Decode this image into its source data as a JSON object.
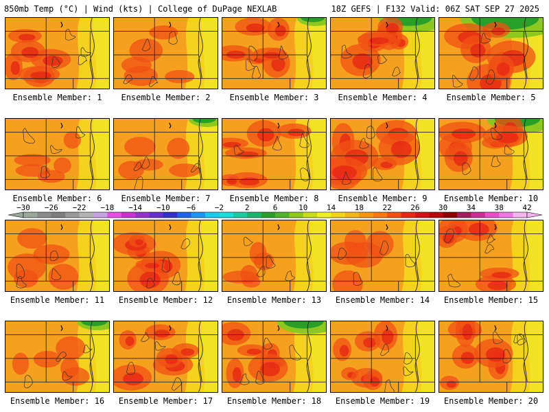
{
  "header": {
    "left": "850mb Temp (°C) | Wind (kts) | College of DuPage NEXLAB",
    "right": "18Z GEFS | F132 Valid: 06Z SAT SEP 27 2025"
  },
  "label_prefix": "Ensemble Member: ",
  "members": [
    {
      "number": 1,
      "intensity": 0.85,
      "green": 0
    },
    {
      "number": 2,
      "intensity": 0.55,
      "green": 0
    },
    {
      "number": 3,
      "intensity": 0.65,
      "green": 0.1
    },
    {
      "number": 4,
      "intensity": 0.75,
      "green": 0.5
    },
    {
      "number": 5,
      "intensity": 0.95,
      "green": 0.9
    },
    {
      "number": 6,
      "intensity": 0.55,
      "green": 0
    },
    {
      "number": 7,
      "intensity": 0.45,
      "green": 0.1
    },
    {
      "number": 8,
      "intensity": 0.7,
      "green": 0
    },
    {
      "number": 9,
      "intensity": 0.9,
      "green": 0
    },
    {
      "number": 10,
      "intensity": 0.9,
      "green": 0.5
    },
    {
      "number": 11,
      "intensity": 0.6,
      "green": 0
    },
    {
      "number": 12,
      "intensity": 0.75,
      "green": 0
    },
    {
      "number": 13,
      "intensity": 0.55,
      "green": 0
    },
    {
      "number": 14,
      "intensity": 0.6,
      "green": 0
    },
    {
      "number": 15,
      "intensity": 0.8,
      "green": 0
    },
    {
      "number": 16,
      "intensity": 0.45,
      "green": 0.15
    },
    {
      "number": 17,
      "intensity": 0.7,
      "green": 0
    },
    {
      "number": 18,
      "intensity": 0.65,
      "green": 0.4
    },
    {
      "number": 19,
      "intensity": 0.75,
      "green": 0
    },
    {
      "number": 20,
      "intensity": 0.85,
      "green": 0
    }
  ],
  "colorbar": {
    "tick_labels": [
      "-30",
      "-26",
      "-22",
      "-18",
      "-14",
      "-10",
      "-6",
      "-2",
      "2",
      "6",
      "10",
      "14",
      "18",
      "22",
      "26",
      "30",
      "34",
      "38",
      "42"
    ],
    "colors": [
      "#9aa89a",
      "#8c8c8c",
      "#7e7e7e",
      "#9a9a9a",
      "#b4b4b4",
      "#c8a0e6",
      "#e650e6",
      "#c832d2",
      "#9632c8",
      "#6432c8",
      "#3232c8",
      "#1e64e6",
      "#1e96f0",
      "#1ec8f0",
      "#1edcdc",
      "#1ecaa0",
      "#1eb46e",
      "#28a028",
      "#50b428",
      "#8cc81e",
      "#c8dc1e",
      "#f0f01e",
      "#f5d21e",
      "#f5b41e",
      "#f59614",
      "#f57814",
      "#f05014",
      "#e62814",
      "#d21414",
      "#b40a0a",
      "#8c0000",
      "#a01e5a",
      "#c83296",
      "#e650c8",
      "#f078e6",
      "#f5b4f0"
    ]
  }
}
